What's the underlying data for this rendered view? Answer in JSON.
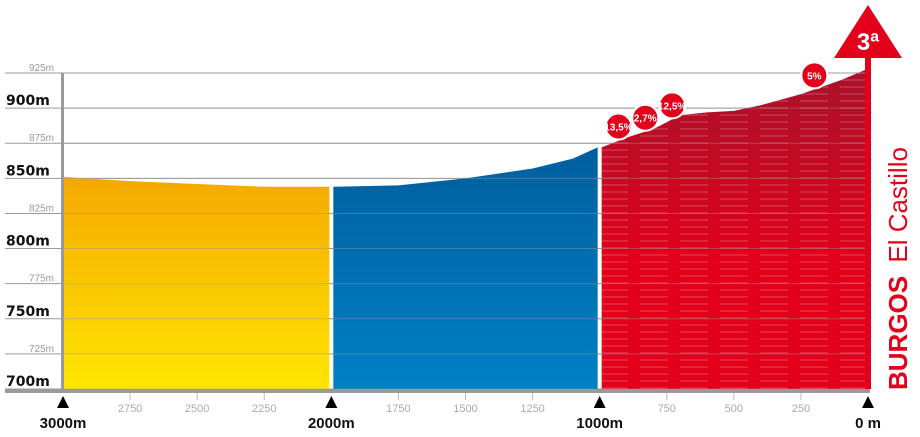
{
  "chart_data": {
    "type": "area",
    "title": "",
    "climb_name_bold": "BURGOS",
    "climb_name": "El Castillo",
    "category": "3ª",
    "xlabel": "",
    "ylabel": "",
    "x_direction": "distance to summit, decreasing left to right",
    "xlim": [
      3000,
      0
    ],
    "ylim": [
      700,
      925
    ],
    "grid": true,
    "y_ticks_major": [
      {
        "value": 900,
        "label": "900m"
      },
      {
        "value": 850,
        "label": "850m"
      },
      {
        "value": 800,
        "label": "800m"
      },
      {
        "value": 750,
        "label": "750m"
      },
      {
        "value": 700,
        "label": "700m"
      }
    ],
    "y_ticks_minor": [
      {
        "value": 925,
        "label": "925m"
      },
      {
        "value": 875,
        "label": "875m"
      },
      {
        "value": 825,
        "label": "825m"
      },
      {
        "value": 775,
        "label": "775m"
      },
      {
        "value": 725,
        "label": "725m"
      }
    ],
    "x_ticks_major": [
      {
        "value": 3000,
        "label": "3000m"
      },
      {
        "value": 2000,
        "label": "2000m"
      },
      {
        "value": 1000,
        "label": "1000m"
      },
      {
        "value": 0,
        "label": "0 m"
      }
    ],
    "x_ticks_minor": [
      {
        "value": 2750,
        "label": "2750"
      },
      {
        "value": 2500,
        "label": "2500"
      },
      {
        "value": 2250,
        "label": "2250"
      },
      {
        "value": 1750,
        "label": "1750"
      },
      {
        "value": 1500,
        "label": "1500"
      },
      {
        "value": 1250,
        "label": "1250"
      },
      {
        "value": 750,
        "label": "750"
      },
      {
        "value": 500,
        "label": "500"
      },
      {
        "value": 250,
        "label": "250"
      }
    ],
    "profile": {
      "x": [
        3000,
        2750,
        2500,
        2250,
        2000,
        1750,
        1500,
        1250,
        1100,
        1000,
        900,
        800,
        700,
        600,
        500,
        400,
        250,
        100,
        0
      ],
      "y": [
        851,
        848,
        846,
        844,
        844,
        845,
        850,
        857,
        864,
        872,
        879,
        885,
        895,
        897,
        898,
        902,
        910,
        920,
        928
      ]
    },
    "segments": [
      {
        "from": 3000,
        "to": 2000,
        "color_top": "#f5a800",
        "color_bottom": "#ffe600"
      },
      {
        "from": 2000,
        "to": 1000,
        "color_top": "#005f9e",
        "color_bottom": "#0080c6"
      },
      {
        "from": 1000,
        "to": 0,
        "color_top": "#a8122c",
        "color_bottom": "#e2001a"
      }
    ],
    "gradient_labels": [
      {
        "x": 930,
        "label": "13,5%"
      },
      {
        "x": 830,
        "label": "2,7%"
      },
      {
        "x": 730,
        "label": "12,5%"
      },
      {
        "x": 200,
        "label": "5%"
      }
    ],
    "accent_color": "#e2001a"
  }
}
